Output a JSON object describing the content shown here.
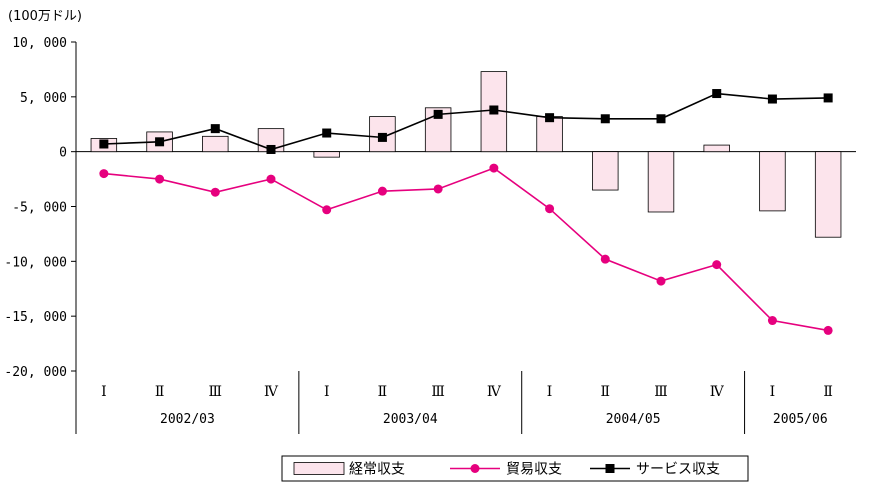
{
  "chart_data": {
    "type": "bar",
    "unit_label": "(100万ドル)",
    "ylim": [
      -20000,
      10000
    ],
    "yticks": [
      10000,
      5000,
      0,
      -5000,
      -10000,
      -15000,
      -20000
    ],
    "ytick_labels": [
      "10, 000",
      "5, 000",
      "0",
      "-5, 000",
      "-10, 000",
      "-15, 000",
      "-20, 000"
    ],
    "categories": [
      "Ⅰ",
      "Ⅱ",
      "Ⅲ",
      "Ⅳ",
      "Ⅰ",
      "Ⅱ",
      "Ⅲ",
      "Ⅳ",
      "Ⅰ",
      "Ⅱ",
      "Ⅲ",
      "Ⅳ",
      "Ⅰ",
      "Ⅱ"
    ],
    "groups": [
      {
        "label": "2002/03",
        "count": 4
      },
      {
        "label": "2003/04",
        "count": 4
      },
      {
        "label": "2004/05",
        "count": 4
      },
      {
        "label": "2005/06",
        "count": 2
      }
    ],
    "series": [
      {
        "name": "経常収支",
        "kind": "bar",
        "color": "#fce4ec",
        "values": [
          1200,
          1800,
          1400,
          2100,
          -500,
          3200,
          4000,
          7300,
          3200,
          -3500,
          -5500,
          600,
          -5400,
          -7800
        ]
      },
      {
        "name": "貿易収支",
        "kind": "line",
        "color": "#e6007e",
        "marker": "circle",
        "values": [
          -2000,
          -2500,
          -3700,
          -2500,
          -5300,
          -3600,
          -3400,
          -1500,
          -5200,
          -9800,
          -11800,
          -10300,
          -15400,
          -16300
        ]
      },
      {
        "name": "サービス収支",
        "kind": "line",
        "color": "#000000",
        "marker": "square",
        "values": [
          700,
          900,
          2100,
          200,
          1700,
          1300,
          3400,
          3800,
          3100,
          3000,
          3000,
          5300,
          4800,
          4900
        ]
      }
    ],
    "legend_position": "bottom"
  }
}
